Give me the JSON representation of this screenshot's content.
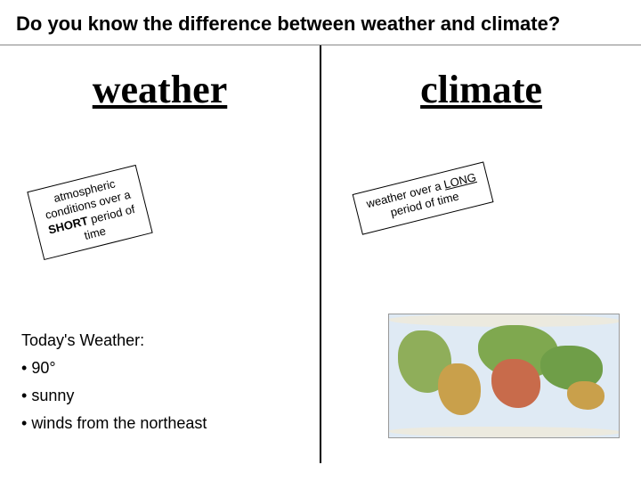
{
  "title": "Do you know the difference between weather and climate?",
  "left": {
    "heading": "weather",
    "callout_lines": [
      "atmospheric",
      "conditions over a",
      "SHORT period of",
      "time"
    ],
    "callout_bold_word": "SHORT",
    "today_heading": "Today's Weather:",
    "today_items": [
      "90°",
      "sunny",
      "winds from the northeast"
    ]
  },
  "right": {
    "heading": "climate",
    "callout_lines": [
      "weather over a LONG",
      "period of time"
    ],
    "callout_underline_word": "LONG"
  },
  "colors": {
    "background": "#ffffff",
    "text": "#000000",
    "divider": "#000000",
    "map_ocean": "#dfeaf4"
  }
}
